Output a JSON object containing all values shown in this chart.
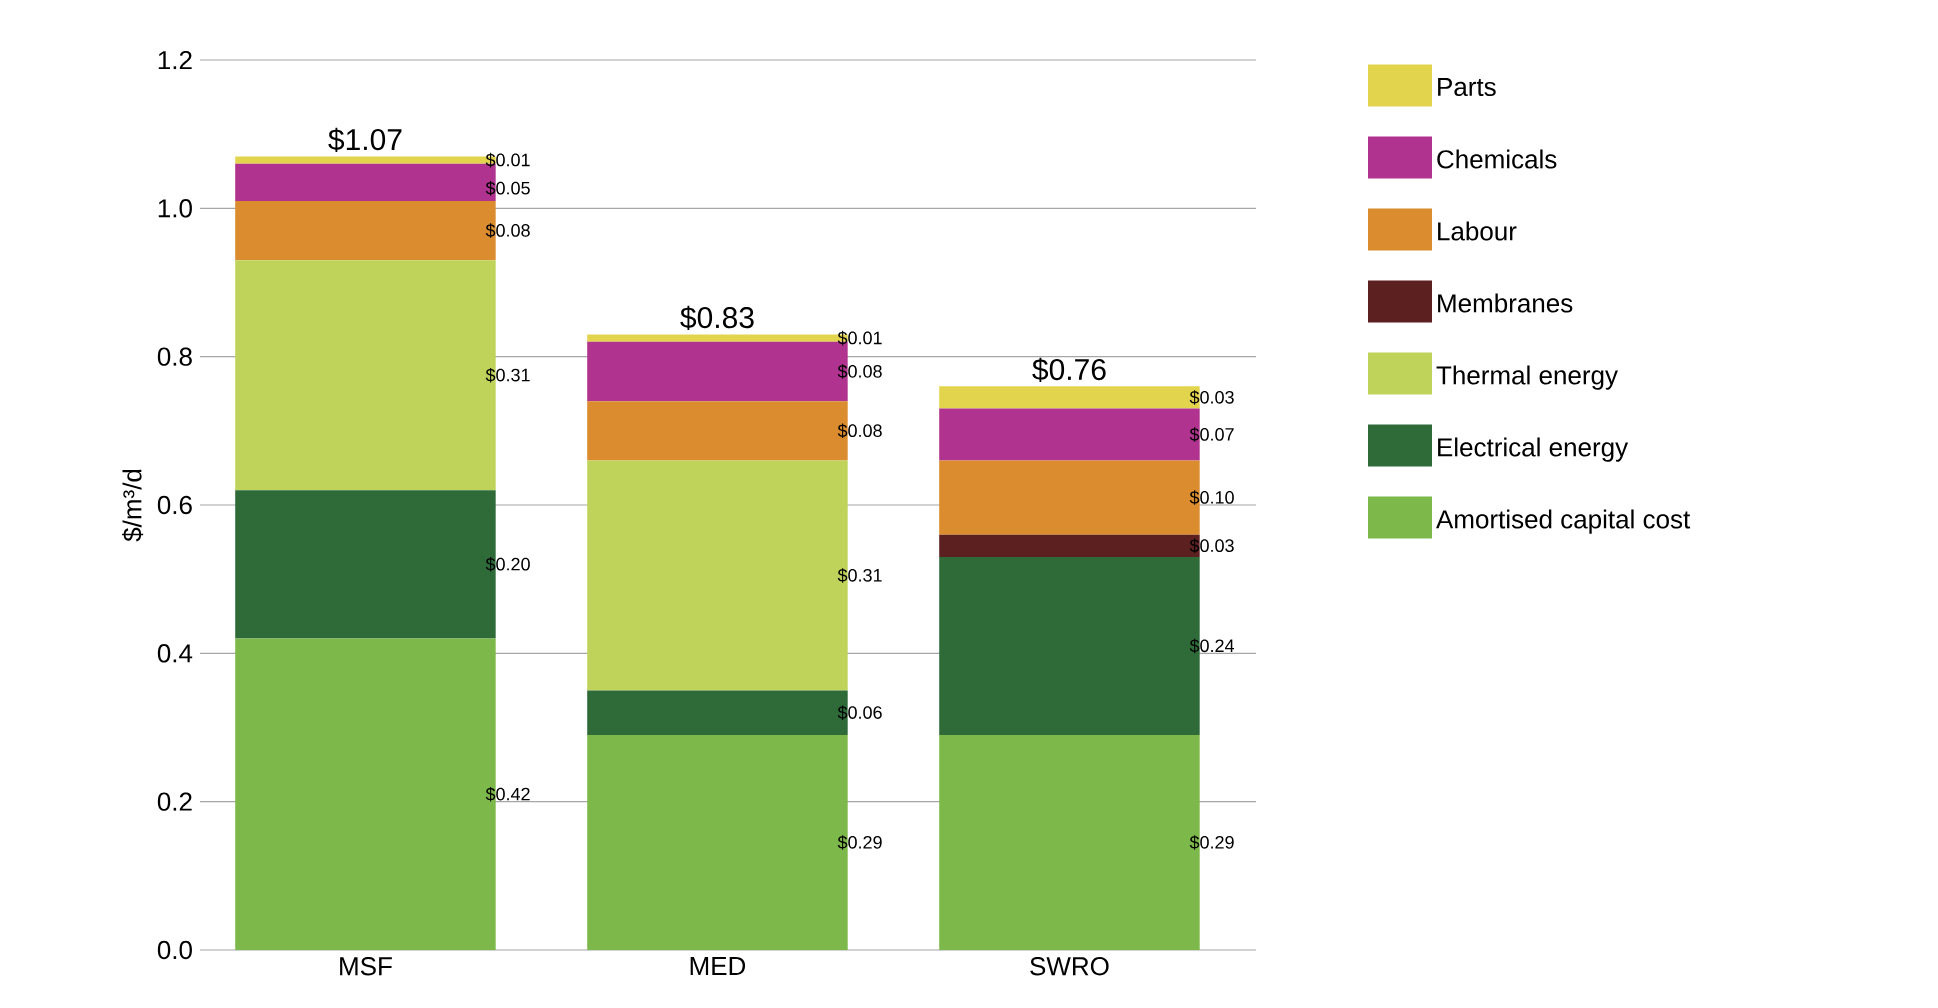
{
  "chart_data": {
    "type": "bar",
    "stacked": true,
    "categories": [
      "MSF",
      "MED",
      "SWRO"
    ],
    "ylabel": "$/m³/d",
    "ylim": [
      0,
      1.2
    ],
    "yticks": [
      {
        "value": 0,
        "label": "0.0"
      },
      {
        "value": 0.2,
        "label": "0.2"
      },
      {
        "value": 0.4,
        "label": "0.4"
      },
      {
        "value": 0.6,
        "label": "0.6"
      },
      {
        "value": 0.8,
        "label": "0.8"
      },
      {
        "value": 1.0,
        "label": "1.0"
      },
      {
        "value": 1.2,
        "label": "1.2"
      }
    ],
    "grid": "y",
    "legend": "right",
    "totals": [
      "$1.07",
      "$0.83",
      "$0.76"
    ],
    "series": [
      {
        "name": "Amortised capital cost",
        "color": "#7cb84a",
        "values": [
          0.42,
          0.29,
          0.29
        ],
        "value_labels": [
          "$0.42",
          "$0.29",
          "$0.29"
        ]
      },
      {
        "name": "Electrical energy",
        "color": "#2e6b38",
        "values": [
          0.2,
          0.06,
          0.24
        ],
        "value_labels": [
          "$0.20",
          "$0.06",
          "$0.24"
        ]
      },
      {
        "name": "Thermal energy",
        "color": "#bfd35a",
        "values": [
          0.31,
          0.31,
          null
        ],
        "value_labels": [
          "$0.31",
          "$0.31",
          null
        ]
      },
      {
        "name": "Membranes",
        "color": "#5c2020",
        "values": [
          null,
          null,
          0.03
        ],
        "value_labels": [
          null,
          null,
          "$0.03"
        ]
      },
      {
        "name": "Labour",
        "color": "#da8c2e",
        "values": [
          0.08,
          0.08,
          0.1
        ],
        "value_labels": [
          "$0.08",
          "$0.08",
          "$0.10"
        ]
      },
      {
        "name": "Chemicals",
        "color": "#b0338f",
        "values": [
          0.05,
          0.08,
          0.07
        ],
        "value_labels": [
          "$0.05",
          "$0.08",
          "$0.07"
        ]
      },
      {
        "name": "Parts",
        "color": "#e3d44e",
        "values": [
          0.01,
          0.01,
          0.03
        ],
        "value_labels": [
          "$0.01",
          "$0.01",
          "$0.03"
        ]
      }
    ]
  }
}
